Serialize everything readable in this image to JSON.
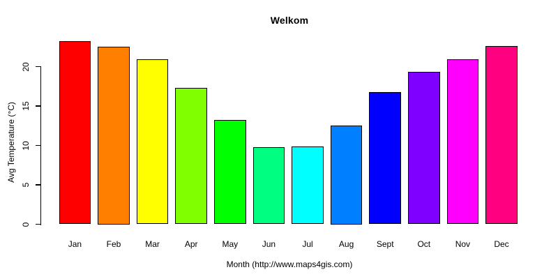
{
  "figure": {
    "background": "#ffffff",
    "text_color": "#000000",
    "axis_color": "#000000"
  },
  "chart_data": {
    "type": "bar",
    "title": "Welkom",
    "xlabel": "Month (http://www.maps4gis.com)",
    "ylabel": "Avg Temperature (°C)",
    "categories": [
      "Jan",
      "Feb",
      "Mar",
      "Apr",
      "May",
      "Jun",
      "Jul",
      "Aug",
      "Sept",
      "Oct",
      "Nov",
      "Dec"
    ],
    "values": [
      23.2,
      22.5,
      20.9,
      17.3,
      13.2,
      9.8,
      9.9,
      12.5,
      16.8,
      19.3,
      20.9,
      22.6
    ],
    "bar_colors": [
      "#FF0000",
      "#FF8000",
      "#FFFF00",
      "#80FF00",
      "#00FF00",
      "#00FF80",
      "#00FFFF",
      "#0080FF",
      "#0000FF",
      "#8000FF",
      "#FF00FF",
      "#FF0080"
    ],
    "bar_border_color": "#000000",
    "yticks": [
      0,
      5,
      10,
      15,
      20
    ],
    "ytick_labels": [
      "0",
      "5",
      "10",
      "15",
      "20"
    ],
    "ylim": [
      0,
      23.2
    ],
    "grid": false,
    "legend": false
  }
}
